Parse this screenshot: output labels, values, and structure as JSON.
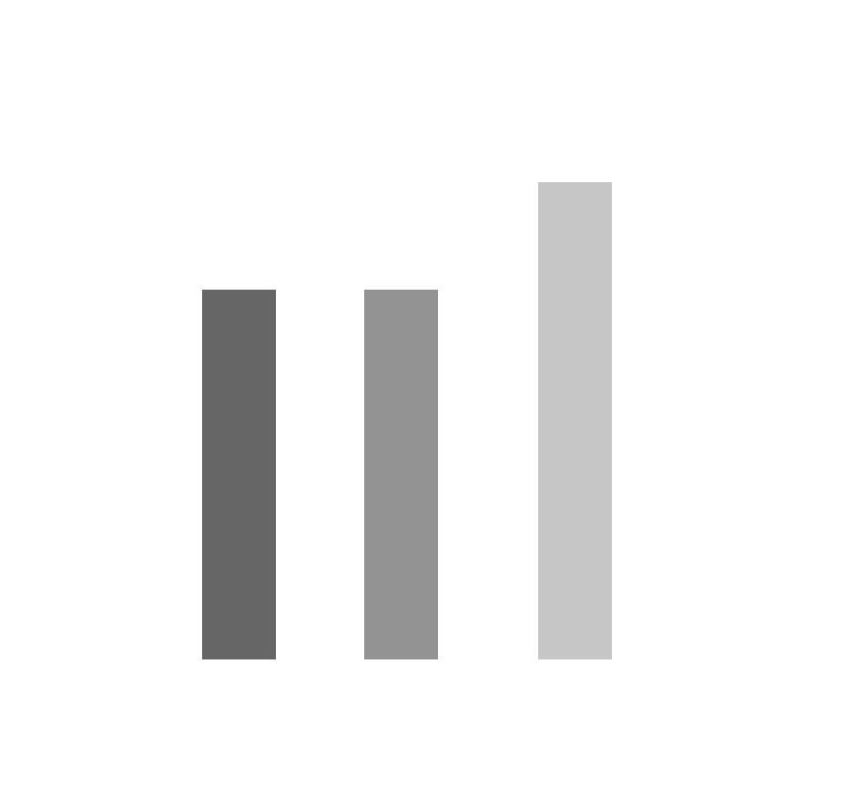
{
  "chart_data": {
    "type": "bar",
    "categories": [
      "",
      "",
      ""
    ],
    "values": [
      406,
      406,
      524
    ],
    "ylim": [
      0,
      524
    ],
    "grid": false,
    "axes_visible": false,
    "title": "",
    "xlabel": "",
    "ylabel": ""
  },
  "colors": {
    "background": "#ffffff",
    "bars": [
      "#666666",
      "#939393",
      "#c6c6c6"
    ]
  }
}
